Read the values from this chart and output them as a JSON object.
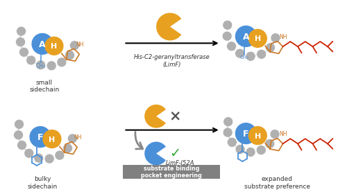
{
  "blue_color": "#4a90d9",
  "gold_color": "#e8a020",
  "gray_color": "#b0b0b0",
  "red_color": "#cc2200",
  "orange_color": "#cc7722",
  "dark_gray_arrow": "#888888",
  "label_small": "small\nsidechain",
  "label_bulky": "bulky\nsidechain",
  "label_enzyme": "His-C2-geranyltransferase\n(LimF)",
  "label_mutant": "LimF-I52A",
  "label_substrate": "substrate binding\npocket engineering",
  "label_expanded": "expanded\nsubstrate preference",
  "letter_A": "A",
  "letter_H": "H",
  "letter_F": "F"
}
